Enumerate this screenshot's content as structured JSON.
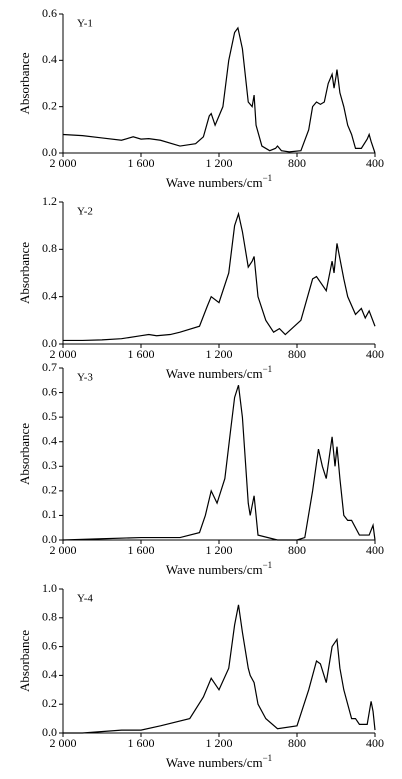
{
  "chart_data": [
    {
      "type": "line",
      "title": "Y-1",
      "xlabel": "Wave numbers/cm",
      "xlabel_superscript": "−1",
      "ylabel": "Absorbance",
      "xlim": [
        2000,
        400
      ],
      "ylim": [
        0,
        0.6
      ],
      "xticks": [
        {
          "value": 2000,
          "label": "2 000"
        },
        {
          "value": 1600,
          "label": "1 600"
        },
        {
          "value": 1200,
          "label": "1 200"
        },
        800,
        400
      ],
      "yticks": [
        {
          "value": 0,
          "label": "0.0"
        },
        0.2,
        0.4,
        0.6
      ],
      "series": [
        {
          "color": "#000000",
          "x": [
            2000,
            1900,
            1800,
            1700,
            1640,
            1600,
            1560,
            1500,
            1400,
            1320,
            1280,
            1250,
            1240,
            1220,
            1180,
            1150,
            1120,
            1103,
            1080,
            1050,
            1030,
            1020,
            1010,
            980,
            940,
            910,
            900,
            880,
            840,
            780,
            740,
            720,
            700,
            680,
            660,
            640,
            620,
            610,
            600,
            595,
            580,
            560,
            540,
            520,
            500,
            470,
            440,
            430,
            420,
            400
          ],
          "values": [
            0.08,
            0.075,
            0.065,
            0.055,
            0.07,
            0.06,
            0.062,
            0.055,
            0.03,
            0.04,
            0.07,
            0.16,
            0.17,
            0.12,
            0.2,
            0.4,
            0.52,
            0.54,
            0.45,
            0.22,
            0.2,
            0.25,
            0.12,
            0.03,
            0.01,
            0.02,
            0.03,
            0.01,
            0.005,
            0.01,
            0.1,
            0.2,
            0.22,
            0.21,
            0.22,
            0.3,
            0.34,
            0.28,
            0.33,
            0.36,
            0.26,
            0.2,
            0.12,
            0.08,
            0.02,
            0.02,
            0.06,
            0.08,
            0.05,
            0.0
          ]
        }
      ]
    },
    {
      "type": "line",
      "title": "Y-2",
      "xlabel": "Wave numbers/cm",
      "xlabel_superscript": "−1",
      "ylabel": "Absorbance",
      "xlim": [
        2000,
        400
      ],
      "ylim": [
        0,
        1.2
      ],
      "xticks": [
        {
          "value": 2000,
          "label": "2 000"
        },
        {
          "value": 1600,
          "label": "1 600"
        },
        {
          "value": 1200,
          "label": "1 200"
        },
        800,
        400
      ],
      "yticks": [
        {
          "value": 0,
          "label": "0.0"
        },
        0.4,
        0.8,
        1.2
      ],
      "series": [
        {
          "color": "#000000",
          "x": [
            2000,
            1900,
            1800,
            1700,
            1600,
            1560,
            1520,
            1450,
            1400,
            1300,
            1260,
            1240,
            1200,
            1150,
            1120,
            1100,
            1080,
            1050,
            1030,
            1020,
            1000,
            960,
            920,
            890,
            860,
            780,
            720,
            700,
            650,
            620,
            610,
            595,
            560,
            540,
            500,
            470,
            450,
            430,
            400
          ],
          "values": [
            0.03,
            0.03,
            0.035,
            0.045,
            0.07,
            0.08,
            0.07,
            0.08,
            0.1,
            0.15,
            0.32,
            0.4,
            0.35,
            0.6,
            1.0,
            1.1,
            0.95,
            0.65,
            0.7,
            0.74,
            0.4,
            0.2,
            0.1,
            0.13,
            0.08,
            0.2,
            0.55,
            0.57,
            0.45,
            0.7,
            0.6,
            0.85,
            0.55,
            0.4,
            0.25,
            0.3,
            0.22,
            0.28,
            0.15
          ]
        }
      ]
    },
    {
      "type": "line",
      "title": "Y-3",
      "xlabel": "Wave numbers/cm",
      "xlabel_superscript": "−1",
      "ylabel": "Absorbance",
      "xlim": [
        2000,
        400
      ],
      "ylim": [
        0,
        0.7
      ],
      "xticks": [
        {
          "value": 2000,
          "label": "2 000"
        },
        {
          "value": 1600,
          "label": "1 600"
        },
        {
          "value": 1200,
          "label": "1 200"
        },
        800,
        400
      ],
      "yticks": [
        {
          "value": 0,
          "label": "0.0"
        },
        0.1,
        0.2,
        0.3,
        0.4,
        0.5,
        0.6,
        0.7
      ],
      "series": [
        {
          "color": "#000000",
          "x": [
            2000,
            1800,
            1600,
            1400,
            1300,
            1270,
            1240,
            1210,
            1170,
            1140,
            1120,
            1100,
            1080,
            1050,
            1040,
            1020,
            1000,
            900,
            800,
            760,
            720,
            690,
            670,
            650,
            620,
            605,
            595,
            580,
            560,
            540,
            520,
            480,
            430,
            410,
            400
          ],
          "values": [
            0.0,
            0.005,
            0.01,
            0.01,
            0.03,
            0.1,
            0.2,
            0.15,
            0.25,
            0.45,
            0.58,
            0.63,
            0.5,
            0.15,
            0.1,
            0.18,
            0.02,
            0.0,
            0.0,
            0.01,
            0.2,
            0.37,
            0.3,
            0.25,
            0.42,
            0.3,
            0.38,
            0.25,
            0.1,
            0.08,
            0.08,
            0.02,
            0.02,
            0.06,
            0.0
          ]
        }
      ]
    },
    {
      "type": "line",
      "title": "Y-4",
      "xlabel": "Wave numbers/cm",
      "xlabel_superscript": "−1",
      "ylabel": "Absorbance",
      "xlim": [
        2000,
        400
      ],
      "ylim": [
        0,
        1.0
      ],
      "xticks": [
        {
          "value": 2000,
          "label": "2 000"
        },
        {
          "value": 1600,
          "label": "1 600"
        },
        {
          "value": 1200,
          "label": "1 200"
        },
        800,
        400
      ],
      "yticks": [
        {
          "value": 0,
          "label": "0.0"
        },
        0.2,
        0.4,
        0.6,
        0.8,
        {
          "value": 1,
          "label": "1.0"
        }
      ],
      "series": [
        {
          "color": "#000000",
          "x": [
            2000,
            1900,
            1700,
            1600,
            1500,
            1350,
            1280,
            1240,
            1200,
            1150,
            1120,
            1100,
            1080,
            1050,
            1040,
            1020,
            1000,
            960,
            900,
            800,
            740,
            700,
            680,
            650,
            620,
            595,
            580,
            560,
            520,
            500,
            480,
            440,
            420,
            410,
            400
          ],
          "values": [
            0.0,
            0.0,
            0.02,
            0.02,
            0.05,
            0.1,
            0.25,
            0.38,
            0.3,
            0.45,
            0.75,
            0.89,
            0.7,
            0.45,
            0.4,
            0.35,
            0.2,
            0.1,
            0.03,
            0.05,
            0.3,
            0.5,
            0.48,
            0.35,
            0.6,
            0.65,
            0.45,
            0.3,
            0.1,
            0.1,
            0.06,
            0.06,
            0.22,
            0.15,
            0.02
          ]
        }
      ]
    }
  ]
}
